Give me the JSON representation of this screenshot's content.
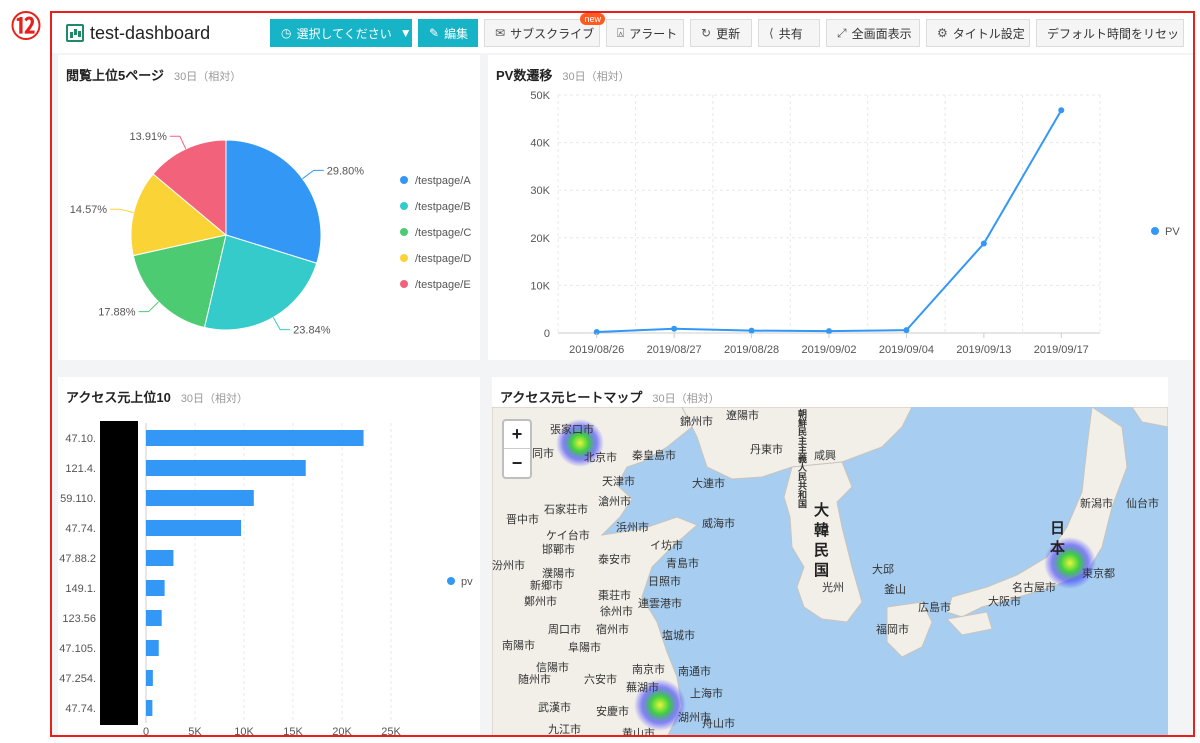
{
  "step_number": "⑫",
  "header": {
    "title": "test-dashboard",
    "buttons": {
      "select": "選択してください",
      "edit": "編集",
      "subscribe": "サブスクライブ",
      "subscribe_badge": "new",
      "alert": "アラート",
      "refresh": "更新",
      "share": "共有",
      "fullscreen": "全画面表示",
      "title_settings": "タイトル設定",
      "reset_time": "デフォルト時間をリセット"
    }
  },
  "panels": {
    "pie": {
      "title": "閲覧上位5ページ",
      "subtitle": "30日（相対）"
    },
    "line": {
      "title": "PV数遷移",
      "subtitle": "30日（相対）"
    },
    "bar": {
      "title": "アクセス元上位10",
      "subtitle": "30日（相対）"
    },
    "map": {
      "title": "アクセス元ヒートマップ",
      "subtitle": "30日（相対）"
    }
  },
  "chart_data": [
    {
      "type": "pie",
      "title": "閲覧上位5ページ",
      "categories": [
        "/testpage/A",
        "/testpage/B",
        "/testpage/C",
        "/testpage/D",
        "/testpage/E"
      ],
      "values": [
        29.8,
        23.84,
        17.88,
        14.57,
        13.91
      ],
      "labels": [
        "29.80%",
        "23.84%",
        "17.88%",
        "14.57%",
        "13.91%"
      ],
      "colors": [
        "#3398f5",
        "#36cbcb",
        "#4dcb73",
        "#fad337",
        "#f2637b"
      ],
      "legend_position": "right"
    },
    {
      "type": "line",
      "title": "PV数遷移",
      "x": [
        "2019/08/26",
        "2019/08/27",
        "2019/08/28",
        "2019/09/02",
        "2019/09/04",
        "2019/09/13",
        "2019/09/17"
      ],
      "series": [
        {
          "name": "PV",
          "values": [
            200,
            900,
            500,
            400,
            600,
            18800,
            46800
          ]
        }
      ],
      "yticks": [
        "0",
        "10K",
        "20K",
        "30K",
        "40K",
        "50K"
      ],
      "ylim": [
        0,
        50000
      ],
      "color": "#3398f5",
      "grid": true,
      "legend_position": "right"
    },
    {
      "type": "bar",
      "orientation": "horizontal",
      "title": "アクセス元上位10",
      "categories": [
        "47.10.",
        "121.4.",
        "59.110.",
        "47.74.",
        "47.88.2",
        "149.1.",
        "123.56",
        "47.105.",
        "47.254.",
        "47.74."
      ],
      "series": [
        {
          "name": "pv",
          "values": [
            22200,
            16300,
            11000,
            9700,
            2800,
            1900,
            1600,
            1300,
            700,
            650
          ]
        }
      ],
      "xticks": [
        "0",
        "5K",
        "10K",
        "15K",
        "20K",
        "25K"
      ],
      "xlim": [
        0,
        25000
      ],
      "color": "#3398f5",
      "grid": true,
      "legend_position": "right"
    }
  ],
  "map": {
    "zoom_in": "+",
    "zoom_out": "−",
    "countries": {
      "korea": [
        "大",
        "韓",
        "民",
        "国"
      ],
      "japan": [
        "日",
        "本"
      ],
      "nk_vertical": [
        "朝",
        "鮮",
        "民",
        "主",
        "主",
        "義",
        "人",
        "民",
        "共",
        "和",
        "国"
      ]
    },
    "cities": [
      "張家口市",
      "北京市",
      "同市",
      "天津市",
      "秦皇島市",
      "錦州市",
      "遼陽市",
      "丹東市",
      "咸興",
      "大連市",
      "滄州市",
      "石家荘市",
      "晋中市",
      "ケイ台市",
      "浜州市",
      "威海市",
      "邯鄲市",
      "イ坊市",
      "泰安市",
      "青島市",
      "濮陽市",
      "日照市",
      "新郷市",
      "棗荘市",
      "鄭州市",
      "連雲港市",
      "徐州市",
      "周口市",
      "宿州市",
      "塩城市",
      "南陽市",
      "阜陽市",
      "信陽市",
      "随州市",
      "六安市",
      "南京市",
      "南通市",
      "蕪湖市",
      "上海市",
      "武漢市",
      "安慶市",
      "湖州市",
      "舟山市",
      "九江市",
      "黄山市",
      "光州",
      "釜山",
      "大邱",
      "新潟市",
      "仙台市",
      "東京都",
      "名古屋市",
      "大阪市",
      "広島市",
      "福岡市",
      "汾州市"
    ],
    "hotspots": [
      {
        "name": "張家口市"
      },
      {
        "name": "東京都"
      },
      {
        "name": "杭州市"
      }
    ],
    "colors": {
      "sea": "#a7cdf0",
      "land": "#f2efe9",
      "heat_core": "#e9f53a",
      "heat_mid": "#3fd13f",
      "heat_outer": "#3b3bff"
    }
  }
}
